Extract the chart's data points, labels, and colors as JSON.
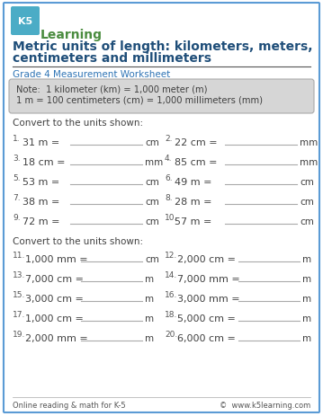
{
  "title_line1": "Metric units of length: kilometers, meters,",
  "title_line2": "centimeters and millimeters",
  "subtitle": "Grade 4 Measurement Worksheet",
  "note_line1": "Note:  1 kilometer (km) = 1,000 meter (m)",
  "note_line2": "1 m = 100 centimeters (cm) = 1,000 millimeters (mm)",
  "convert_label": "Convert to the units shown:",
  "section1_problems_left": [
    [
      "1.",
      "31 m =",
      "cm"
    ],
    [
      "3.",
      "18 cm =",
      "mm"
    ],
    [
      "5.",
      "53 m =",
      "cm"
    ],
    [
      "7.",
      "38 m =",
      "cm"
    ],
    [
      "9.",
      "72 m =",
      "cm"
    ]
  ],
  "section1_problems_right": [
    [
      "2.",
      "22 cm =",
      "mm"
    ],
    [
      "4.",
      "85 cm =",
      "mm"
    ],
    [
      "6.",
      "49 m =",
      "cm"
    ],
    [
      "8.",
      "28 m =",
      "cm"
    ],
    [
      "10.",
      "57 m =",
      "cm"
    ]
  ],
  "section2_problems_left": [
    [
      "11.",
      "1,000 mm =",
      "cm"
    ],
    [
      "13.",
      "7,000 cm =",
      "m"
    ],
    [
      "15.",
      "3,000 cm =",
      "m"
    ],
    [
      "17.",
      "1,000 cm =",
      "m"
    ],
    [
      "19.",
      "2,000 mm =",
      "m"
    ]
  ],
  "section2_problems_right": [
    [
      "12.",
      "2,000 cm =",
      "m"
    ],
    [
      "14.",
      "7,000 mm =",
      "m"
    ],
    [
      "16.",
      "3,000 mm =",
      "m"
    ],
    [
      "18.",
      "5,000 cm =",
      "m"
    ],
    [
      "20.",
      "6,000 cm =",
      "m"
    ]
  ],
  "footer_left": "Online reading & math for K-5",
  "footer_right": "©  www.k5learning.com",
  "bg_color": "#ffffff",
  "border_color": "#5b9bd5",
  "title_color": "#1f4e79",
  "subtitle_color": "#2e74b5",
  "note_bg_color": "#d6d6d6",
  "note_border_color": "#aaaaaa",
  "note_text_color": "#404040",
  "body_text_color": "#404040",
  "num_color": "#555555",
  "line_color": "#aaaaaa",
  "footer_color": "#555555",
  "divider_color": "#555555"
}
